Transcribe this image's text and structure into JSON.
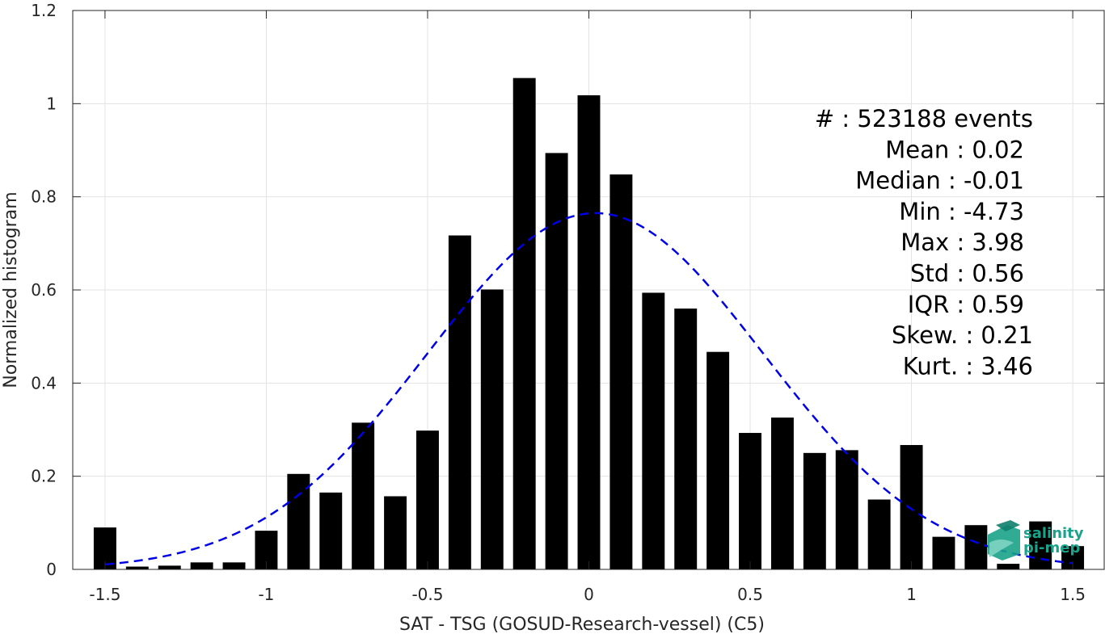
{
  "chart_data": {
    "type": "bar",
    "xlabel": "SAT - TSG (GOSUD-Research-vessel) (C5)",
    "ylabel": "Normalized histogram",
    "xlim": [
      -1.6,
      1.6
    ],
    "ylim": [
      0,
      1.2
    ],
    "x_ticks": [
      -1.5,
      -1,
      -0.5,
      0,
      0.5,
      1,
      1.5
    ],
    "x_tick_labels": [
      "-1.5",
      "-1",
      "-0.5",
      "0",
      "0.5",
      "1",
      "1.5"
    ],
    "y_ticks": [
      0,
      0.2,
      0.4,
      0.6,
      0.8,
      1,
      1.2
    ],
    "y_tick_labels": [
      "0",
      "0.2",
      "0.4",
      "0.6",
      "0.8",
      "1",
      "1.2"
    ],
    "grid": true,
    "bar_centers": [
      -1.5,
      -1.4,
      -1.3,
      -1.2,
      -1.1,
      -1.0,
      -0.9,
      -0.8,
      -0.7,
      -0.6,
      -0.5,
      -0.4,
      -0.3,
      -0.2,
      -0.1,
      0.0,
      0.1,
      0.2,
      0.3,
      0.4,
      0.5,
      0.6,
      0.7,
      0.8,
      0.9,
      1.0,
      1.1,
      1.2,
      1.3,
      1.4,
      1.5
    ],
    "bar_width": 0.07,
    "values": [
      0.09,
      0.006,
      0.008,
      0.015,
      0.015,
      0.083,
      0.205,
      0.165,
      0.315,
      0.157,
      0.298,
      0.717,
      0.601,
      1.055,
      0.894,
      1.018,
      0.848,
      0.594,
      0.56,
      0.467,
      0.293,
      0.326,
      0.25,
      0.256,
      0.15,
      0.267,
      0.07,
      0.095,
      0.012,
      0.103,
      0.05
    ],
    "bar_color": "#000000",
    "fit_curve": {
      "style": "dashed",
      "color": "#0000e6",
      "mean": 0.02,
      "std": 0.52,
      "peak": 0.765,
      "x_range": [
        -1.5,
        1.5
      ]
    },
    "stats_lines": [
      "#  : 523188 events",
      "Mean : 0.02",
      "Median : -0.01",
      "Min : -4.73",
      "Max : 3.98",
      "Std : 0.56",
      "IQR : 0.59",
      "Skew. : 0.21",
      "Kurt. : 3.46"
    ]
  },
  "logo": {
    "line1": "salinity",
    "line2": "pi-mep",
    "color": "#1aa38a"
  }
}
